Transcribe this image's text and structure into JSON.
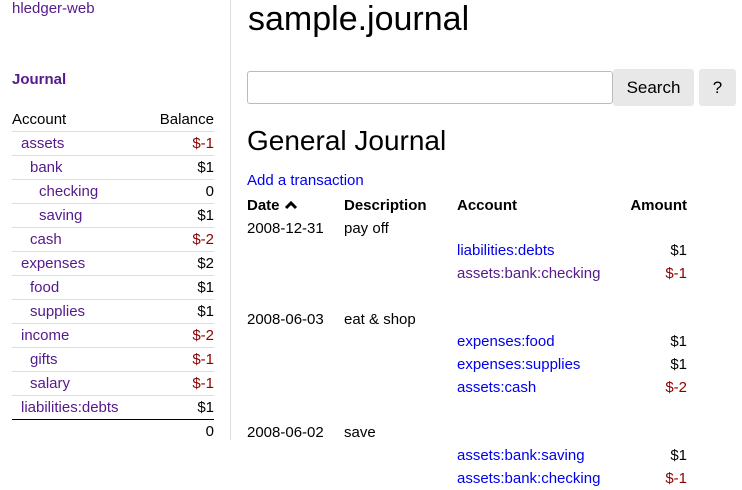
{
  "sidebar": {
    "brand": "hledger-web",
    "journal_link": "Journal",
    "headers": {
      "account": "Account",
      "balance": "Balance"
    },
    "accounts": [
      {
        "name": "assets",
        "balance": "$-1",
        "depth": 0,
        "negative": true
      },
      {
        "name": "bank",
        "balance": "$1",
        "depth": 1,
        "negative": false
      },
      {
        "name": "checking",
        "balance": "0",
        "depth": 2,
        "negative": false
      },
      {
        "name": "saving",
        "balance": "$1",
        "depth": 2,
        "negative": false
      },
      {
        "name": "cash",
        "balance": "$-2",
        "depth": 1,
        "negative": true
      },
      {
        "name": "expenses",
        "balance": "$2",
        "depth": 0,
        "negative": false
      },
      {
        "name": "food",
        "balance": "$1",
        "depth": 1,
        "negative": false
      },
      {
        "name": "supplies",
        "balance": "$1",
        "depth": 1,
        "negative": false
      },
      {
        "name": "income",
        "balance": "$-2",
        "depth": 0,
        "negative": true
      },
      {
        "name": "gifts",
        "balance": "$-1",
        "depth": 1,
        "negative": true
      },
      {
        "name": "salary",
        "balance": "$-1",
        "depth": 1,
        "negative": true
      },
      {
        "name": "liabilities:debts",
        "balance": "$1",
        "depth": 0,
        "negative": false
      }
    ],
    "total": "0"
  },
  "main": {
    "title": "sample.journal",
    "search": {
      "value": "",
      "placeholder": ""
    },
    "search_button": "Search",
    "help_button": "?",
    "heading": "General Journal",
    "add_link": "Add a transaction",
    "columns": {
      "date": "Date",
      "sort_icon": "chevron-up-icon",
      "description": "Description",
      "account": "Account",
      "amount": "Amount"
    },
    "transactions": [
      {
        "date": "2008-12-31",
        "description": "pay off",
        "postings": [
          {
            "account": "liabilities:debts",
            "amount": "$1",
            "negative": false,
            "visited": false
          },
          {
            "account": "assets:bank:checking",
            "amount": "$-1",
            "negative": true,
            "visited": true
          }
        ]
      },
      {
        "date": "2008-06-03",
        "description": "eat & shop",
        "postings": [
          {
            "account": "expenses:food",
            "amount": "$1",
            "negative": false,
            "visited": false
          },
          {
            "account": "expenses:supplies",
            "amount": "$1",
            "negative": false,
            "visited": false
          },
          {
            "account": "assets:cash",
            "amount": "$-2",
            "negative": true,
            "visited": false
          }
        ]
      },
      {
        "date": "2008-06-02",
        "description": "save",
        "postings": [
          {
            "account": "assets:bank:saving",
            "amount": "$1",
            "negative": false,
            "visited": false
          },
          {
            "account": "assets:bank:checking",
            "amount": "$-1",
            "negative": true,
            "visited": false
          }
        ]
      }
    ]
  },
  "colors": {
    "link": "#0000ee",
    "visited": "#551a8b",
    "negative": "#8b0000"
  }
}
